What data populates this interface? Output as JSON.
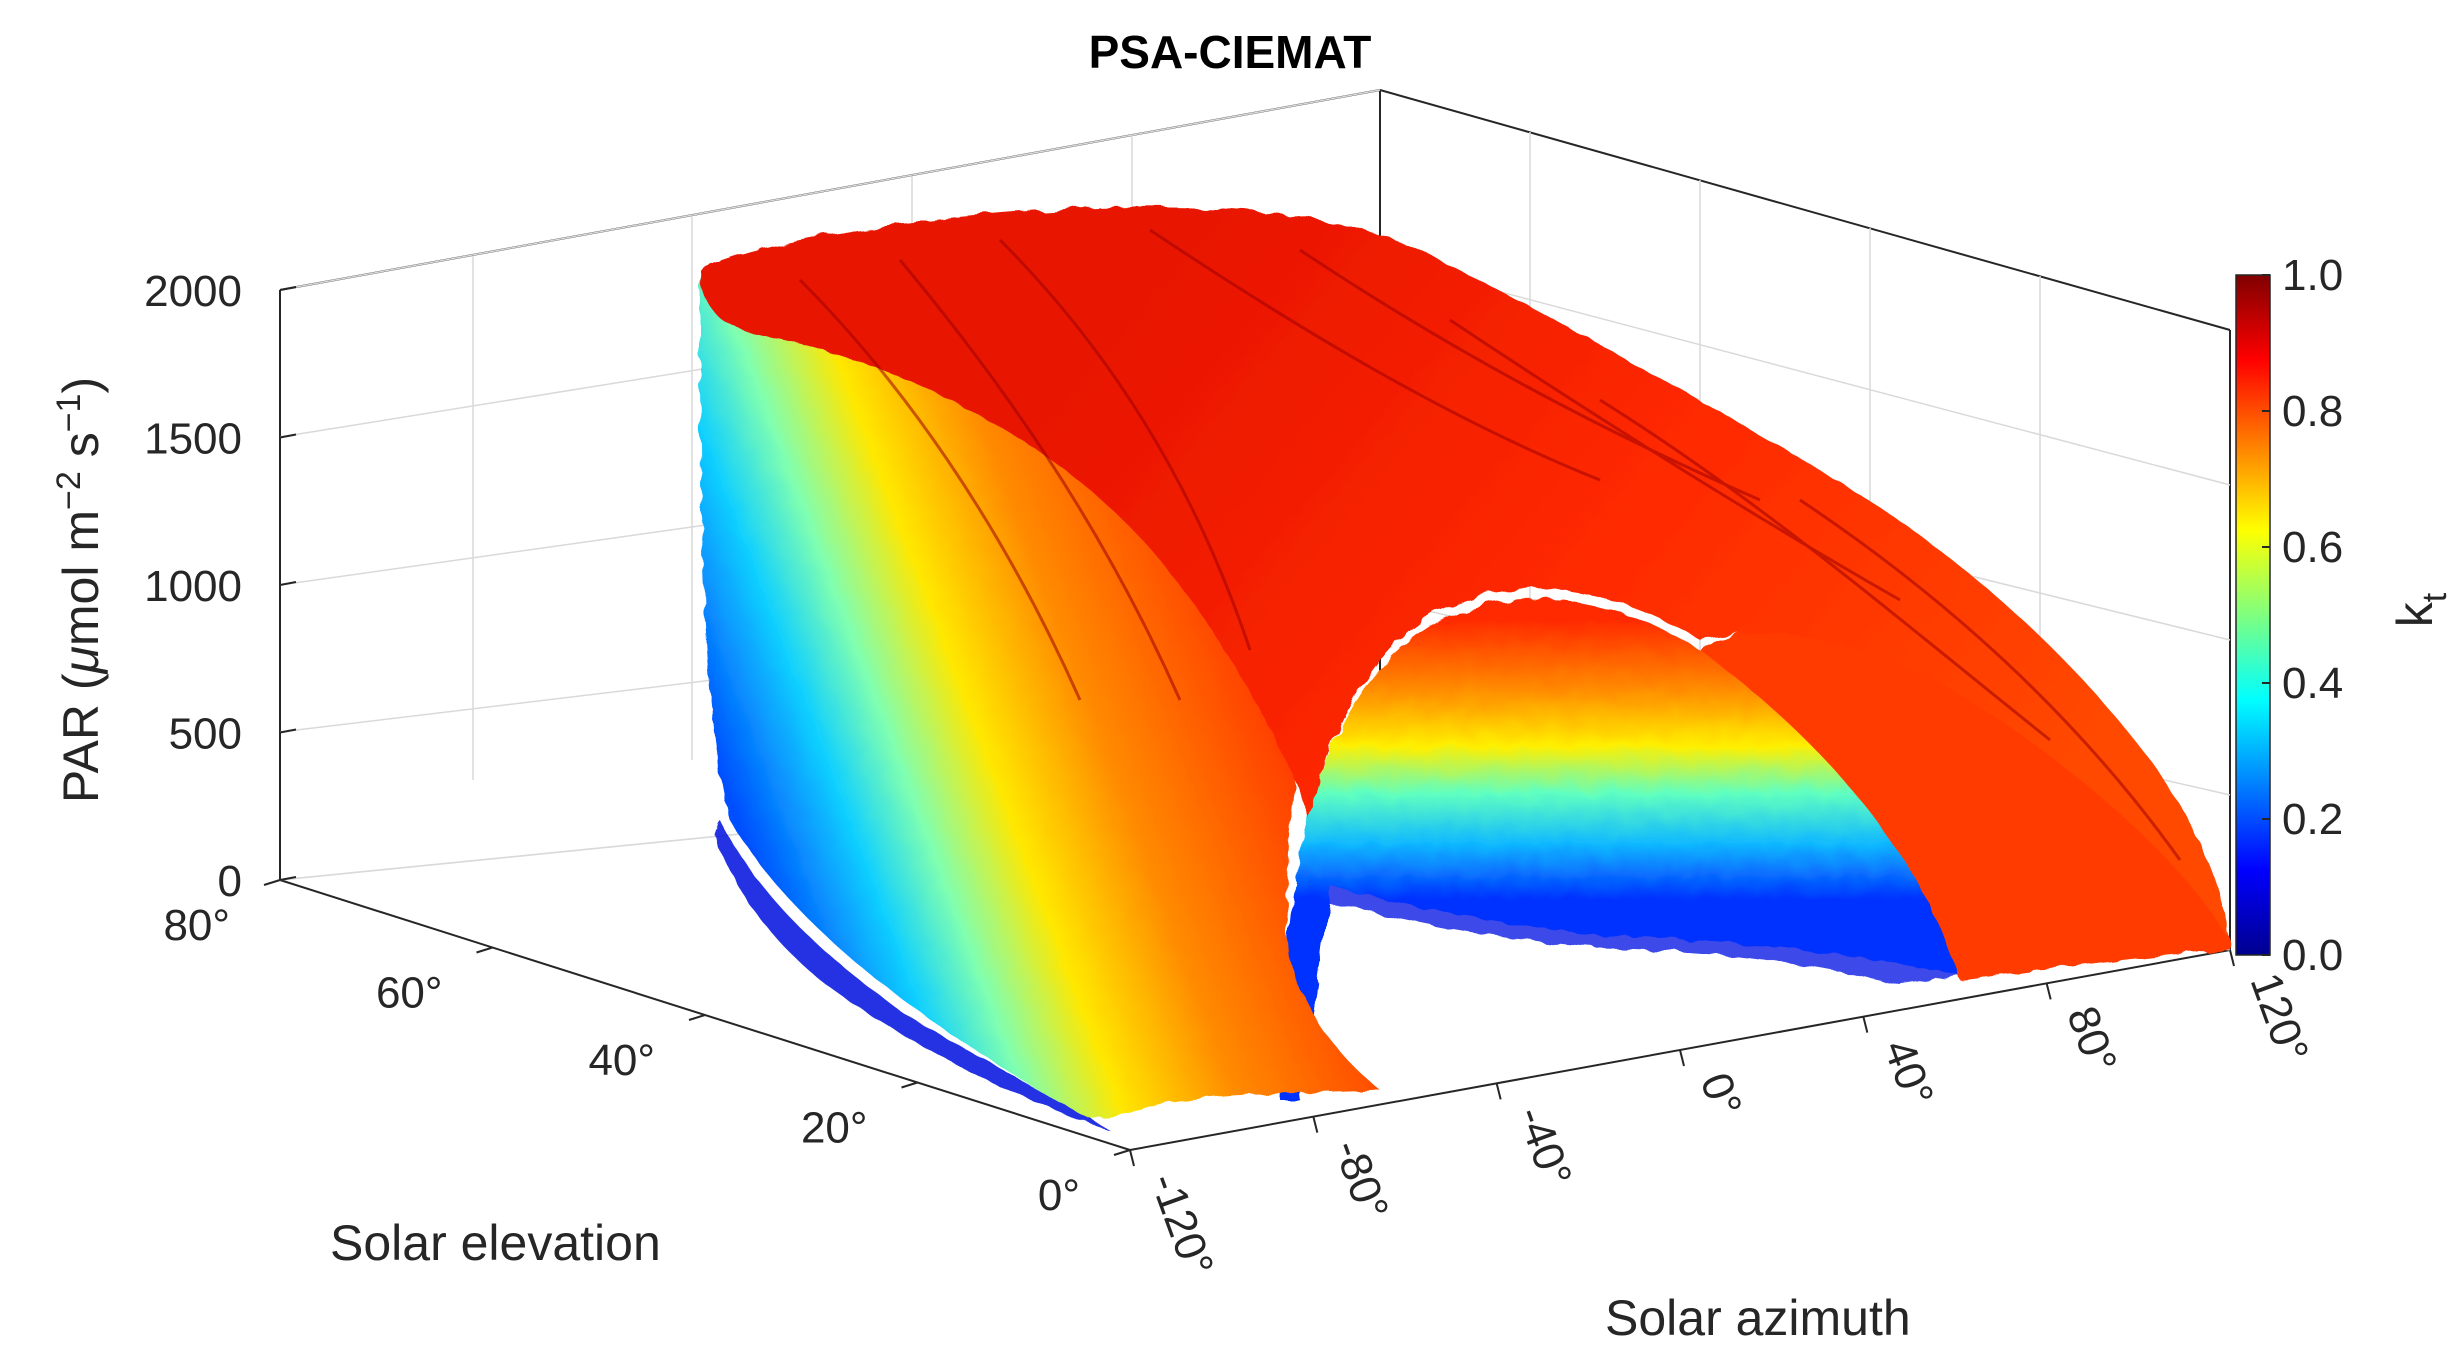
{
  "chart_data": {
    "type": "scatter",
    "dimensions": 3,
    "title": "PSA-CIEMAT",
    "xlabel": "Solar azimuth",
    "ylabel": "Solar elevation",
    "zlabel": "PAR (μmol m⁻² s⁻¹)",
    "x_range": [
      -120,
      120
    ],
    "y_range": [
      0,
      80
    ],
    "z_range": [
      0,
      2000
    ],
    "x_ticks": [
      "-120°",
      "-80°",
      "-40°",
      "0°",
      "40°",
      "80°",
      "120°"
    ],
    "y_ticks": [
      "0°",
      "20°",
      "40°",
      "60°",
      "80°"
    ],
    "z_ticks": [
      "0",
      "500",
      "1000",
      "1500",
      "2000"
    ],
    "colorbar": {
      "label": "k_t",
      "label_main": "k",
      "label_sub": "t",
      "range": [
        0.0,
        1.0
      ],
      "ticks": [
        "0.0",
        "0.2",
        "0.4",
        "0.6",
        "0.8",
        "1.0"
      ],
      "colormap": "jet"
    },
    "description_values": {
      "max_par": 2000,
      "azimuth_gap": [
        -80,
        -40
      ]
    }
  }
}
